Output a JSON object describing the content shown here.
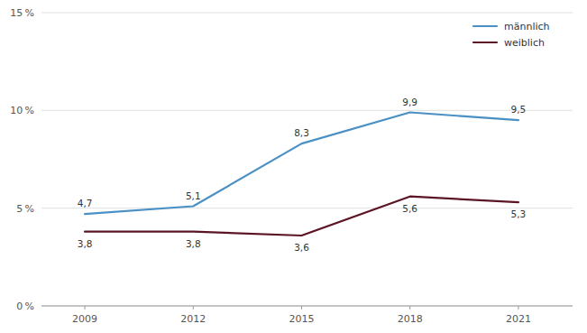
{
  "chart_data": {
    "type": "line",
    "x": [
      2009,
      2012,
      2015,
      2018,
      2021
    ],
    "series": [
      {
        "name": "männlich",
        "color": "#4a90c4",
        "values": [
          4.7,
          5.1,
          8.3,
          9.9,
          9.5
        ],
        "value_labels": [
          "4,7",
          "5,1",
          "8,3",
          "9,9",
          "9,5"
        ]
      },
      {
        "name": "weiblich",
        "color": "#5c1525",
        "values": [
          3.8,
          3.8,
          3.6,
          5.6,
          5.3
        ],
        "value_labels": [
          "3,8",
          "3,8",
          "3,6",
          "5,6",
          "5,3"
        ]
      }
    ],
    "xlim": [
      2007.8,
      2022.5
    ],
    "xticks": [
      2009,
      2012,
      2015,
      2018,
      2021
    ],
    "ylim": [
      0,
      15
    ],
    "yticks": [
      {
        "value": 0,
        "label": "0 %"
      },
      {
        "value": 5,
        "label": "5 %"
      },
      {
        "value": 10,
        "label": "10 %"
      },
      {
        "value": 15,
        "label": "15 %"
      }
    ],
    "grid": true,
    "legend": "upper right",
    "data_labels": true
  }
}
